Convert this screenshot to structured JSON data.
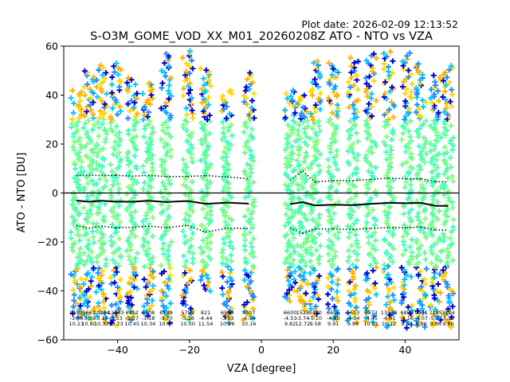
{
  "chart_data": {
    "type": "scatter",
    "plot_date": "Plot date: 2026-02-09 12:13:52",
    "title": "S-O3M_GOME_VOD_XX_M01_20260208Z ATO - NTO vs VZA",
    "xlabel": "VZA [degree]",
    "ylabel": "ATO - NTO [DU]",
    "xlim": [
      -55,
      55
    ],
    "ylim": [
      -60,
      60
    ],
    "xticks": [
      -40,
      -20,
      0,
      20,
      40
    ],
    "yticks": [
      -60,
      -40,
      -20,
      0,
      20,
      40,
      60
    ],
    "xtick_labels": [
      "−40",
      "−20",
      "0",
      "20",
      "40"
    ],
    "ytick_labels": [
      "−60",
      "−40",
      "−20",
      "0",
      "20",
      "40",
      "60"
    ],
    "bins": [
      {
        "vza": -51.5,
        "count": "9193",
        "mean": "-3.08",
        "std": "10.21",
        "lo": -51,
        "hi": 42
      },
      {
        "vza": -48.0,
        "count": "9661",
        "mean": "-3.59",
        "std": "10.80",
        "lo": -52,
        "hi": 50
      },
      {
        "vza": -44.5,
        "count": "10234",
        "mean": "-3.17",
        "std": "10.33",
        "lo": -53,
        "hi": 52
      },
      {
        "vza": -40.5,
        "count": "12783",
        "mean": "-3.53",
        "std": "10.73",
        "lo": -54,
        "hi": 53
      },
      {
        "vza": -36.0,
        "count": "6452",
        "mean": "-3.57",
        "std": "10.45",
        "lo": -52,
        "hi": 47
      },
      {
        "vza": -31.5,
        "count": "6508",
        "mean": "-3.18",
        "std": "10.34",
        "lo": -50,
        "hi": 45
      },
      {
        "vza": -26.5,
        "count": "6549",
        "mean": "-3.70",
        "std": "10.47",
        "lo": -53,
        "hi": 57
      },
      {
        "vza": -20.5,
        "count": "5759",
        "mean": "-3.26",
        "std": "10.00",
        "lo": -52,
        "hi": 58
      },
      {
        "vza": -15.5,
        "count": "821",
        "mean": "-4.44",
        "std": "11.54",
        "lo": -40,
        "hi": 51
      },
      {
        "vza": -9.5,
        "count": "6598",
        "mean": "-3.93",
        "std": "10.46",
        "lo": -53,
        "hi": 42
      },
      {
        "vza": -3.5,
        "count": "4507",
        "mean": "-4.34",
        "std": "10.16",
        "lo": -52,
        "hi": 49
      },
      {
        "vza": 8.0,
        "count": "6600",
        "mean": "-4.53",
        "std": "9.82",
        "lo": -44,
        "hi": 42
      },
      {
        "vza": 11.5,
        "count": "1528",
        "mean": "-3.74",
        "std": "12.72",
        "lo": -48,
        "hi": 40
      },
      {
        "vza": 15.0,
        "count": "5480",
        "mean": "-5.10",
        "std": "9.58",
        "lo": -50,
        "hi": 54
      },
      {
        "vza": 20.0,
        "count": "6606",
        "mean": "-4.80",
        "std": "9.91",
        "lo": -52,
        "hi": 53
      },
      {
        "vza": 25.5,
        "count": "6603",
        "mean": "-4.94",
        "std": "9.96",
        "lo": -53,
        "hi": 55
      },
      {
        "vza": 30.5,
        "count": "6973",
        "mean": "-4.45",
        "std": "10.01",
        "lo": -54,
        "hi": 57
      },
      {
        "vza": 35.5,
        "count": "13538",
        "mean": "-4.01",
        "std": "10.12",
        "lo": -55,
        "hi": 58
      },
      {
        "vza": 40.5,
        "count": "6893",
        "mean": "-4.16",
        "std": "9.94",
        "lo": -55,
        "hi": 57
      },
      {
        "vza": 44.5,
        "count": "9971",
        "mean": "-4.07",
        "std": "9.86",
        "lo": -55,
        "hi": 53
      },
      {
        "vza": 48.5,
        "count": "7185",
        "mean": "-5.27",
        "std": "9.86",
        "lo": -54,
        "hi": 48
      },
      {
        "vza": 52.0,
        "count": "3104",
        "mean": "-5.27",
        "std": "9.86",
        "lo": -55,
        "hi": 52
      }
    ],
    "mean_line": {
      "color": "#000000",
      "style": "solid"
    },
    "std_lines": {
      "color": "#000000",
      "style": "dotted"
    },
    "zero_line": {
      "y": 0,
      "color": "#000000"
    },
    "point_colors": [
      "#5aff9a",
      "#3affc0",
      "#6cf7a0",
      "#7fff7a",
      "#00c8ff",
      "#1a8cff",
      "#ffd700",
      "#ffb000",
      "#0000d0",
      "#a0ff60"
    ]
  }
}
